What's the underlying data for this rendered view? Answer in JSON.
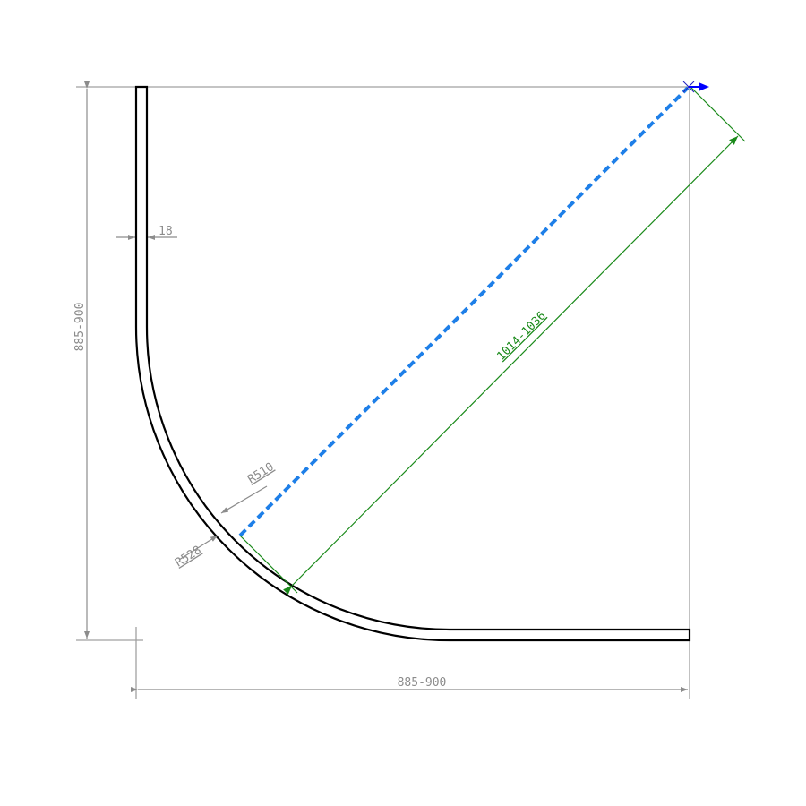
{
  "labels": {
    "wall_thickness": "18",
    "height": "885-900",
    "width": "885-900",
    "inner_radius": "R510",
    "outer_radius": "R528",
    "diagonal": "1014-1036"
  },
  "colors": {
    "profile": "#000000",
    "dimension": "#8c8c8c",
    "diagonal_dimension": "#1a8a1a",
    "dashed_diagonal": "#1e7fe8",
    "origin_marker": "#0000ff"
  }
}
